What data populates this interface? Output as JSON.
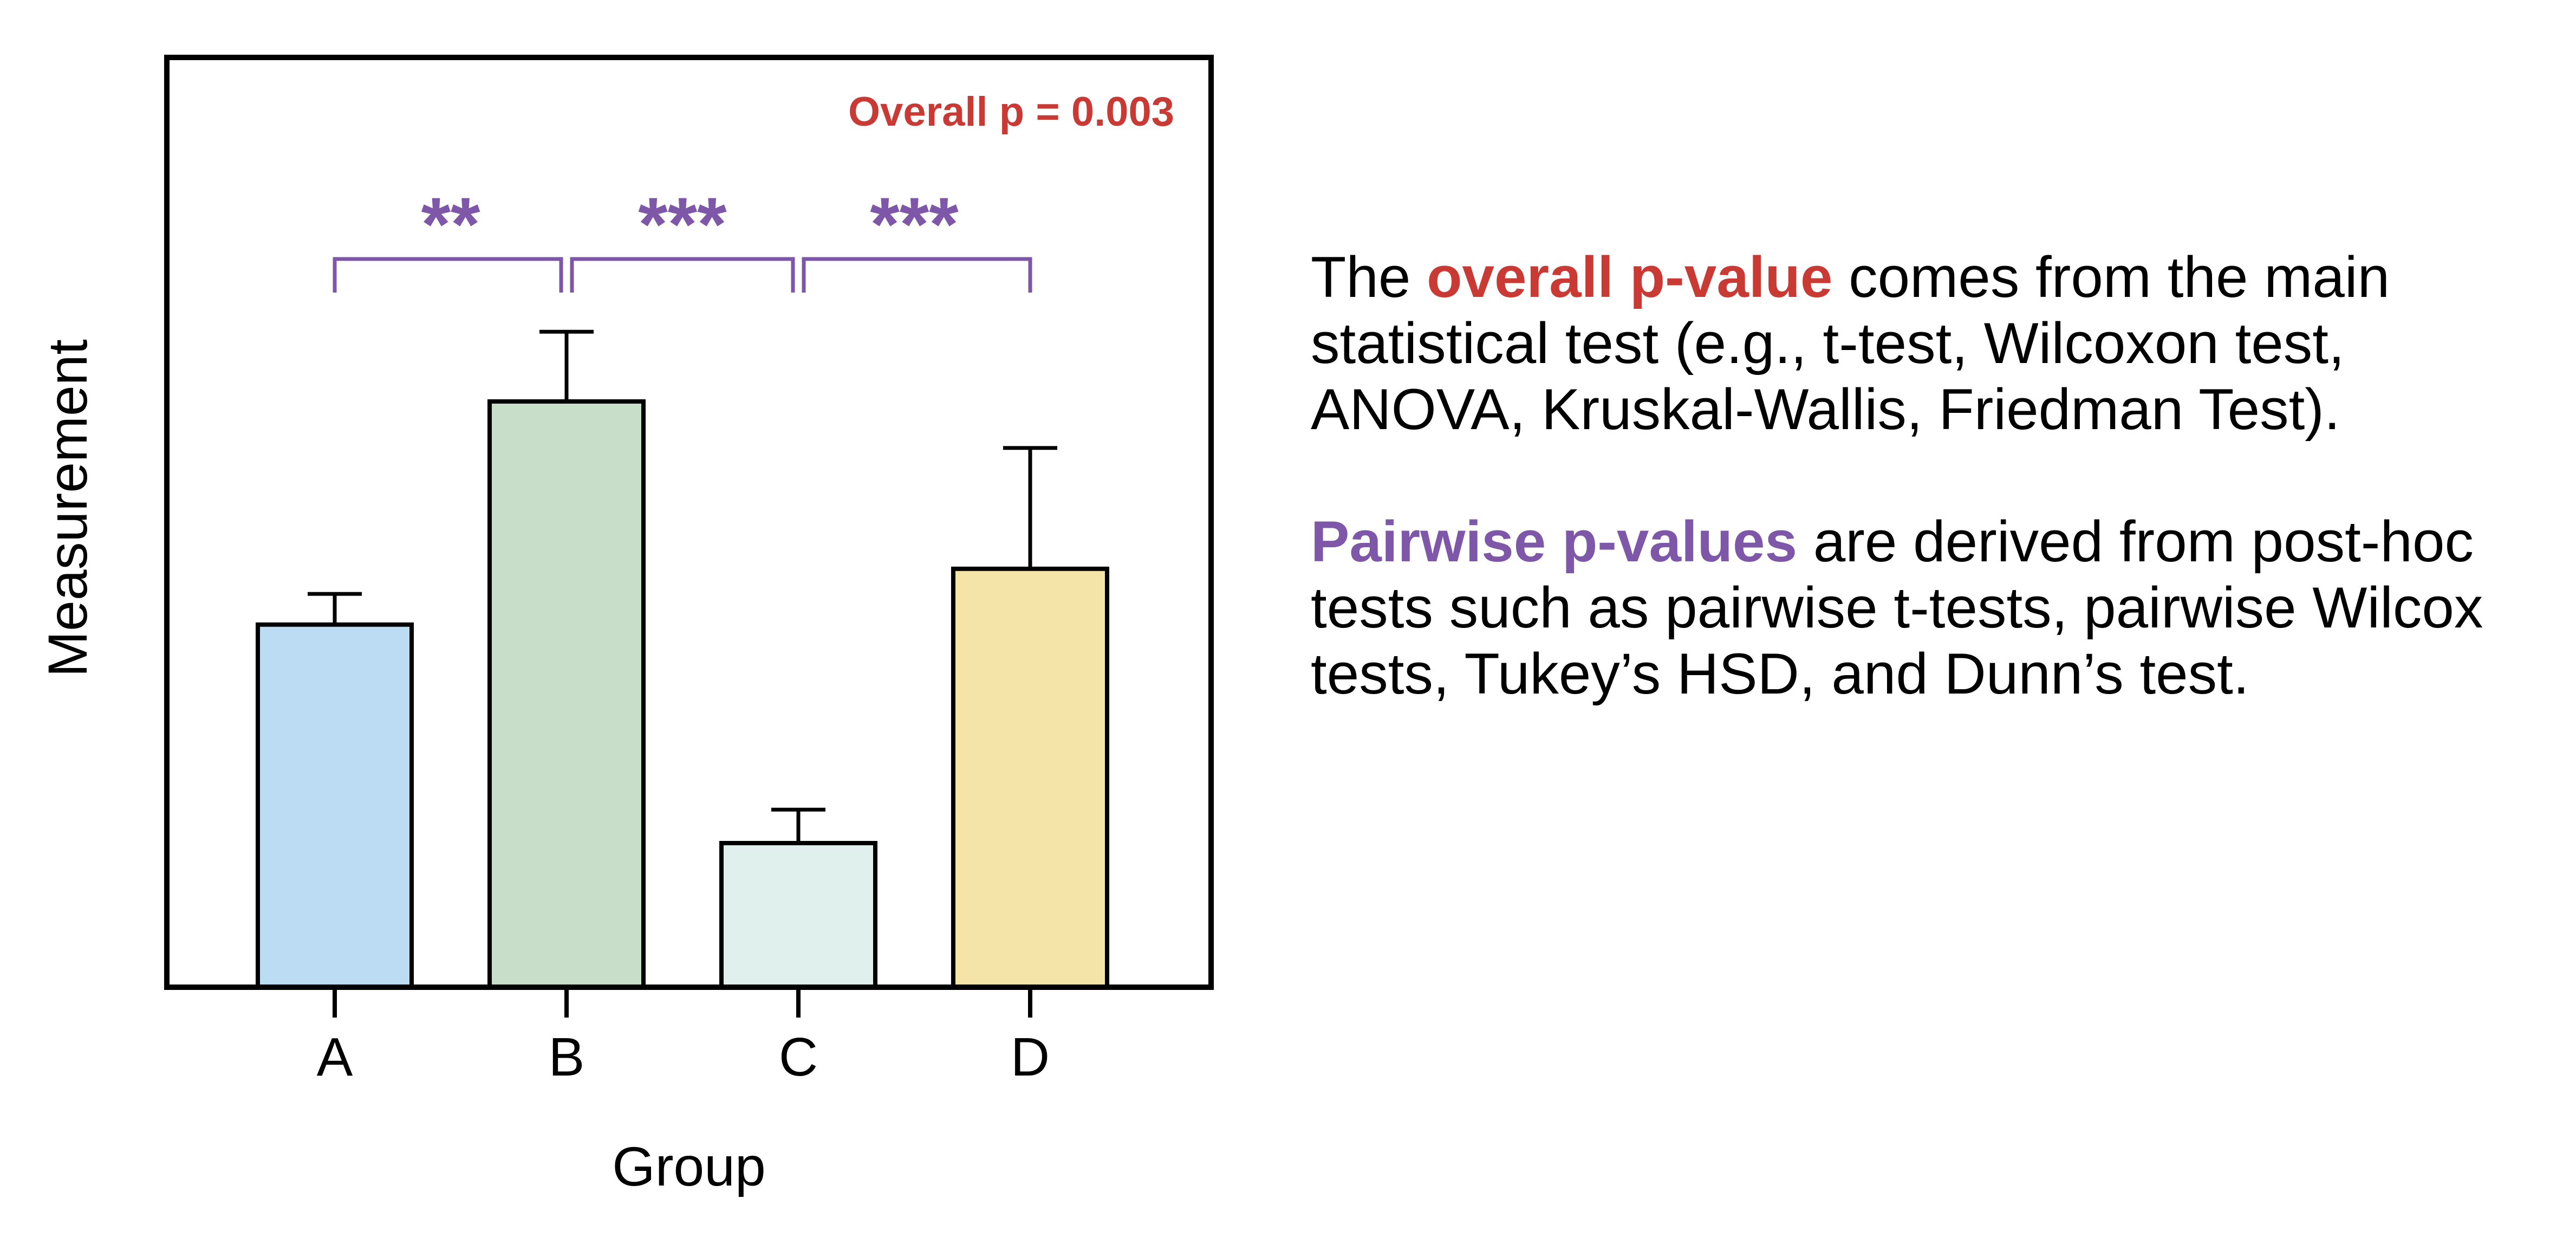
{
  "chart_data": {
    "type": "bar",
    "title": "",
    "xlabel": "Group",
    "ylabel": "Measurement",
    "categories": [
      "A",
      "B",
      "C",
      "D"
    ],
    "values": [
      39,
      63,
      15.5,
      45
    ],
    "errors": [
      3.3,
      7.5,
      3.6,
      13
    ],
    "colors": [
      "#bbdcf3",
      "#c9dec9",
      "#e0f0ec",
      "#f5e4a7"
    ],
    "ylim": [
      0,
      100
    ],
    "y_ticks_shown": false,
    "grid": false,
    "legend": "none",
    "annotations": {
      "overall_p": "Overall p = 0.003",
      "overall_color": "#c93a35",
      "pairwise_color": "#7e57a8",
      "pairwise": [
        {
          "from": "A",
          "to": "B",
          "label": "**"
        },
        {
          "from": "B",
          "to": "C",
          "label": "***"
        },
        {
          "from": "C",
          "to": "D",
          "label": "***"
        }
      ]
    }
  },
  "explanation": {
    "p1_before": "The ",
    "p1_highlight": "overall p-value",
    "p1_after": " comes from the main statistical test (e.g., t-test, Wilcoxon test, ANOVA, Kruskal-Wallis, Friedman Test).",
    "p2_highlight": "Pairwise p-values",
    "p2_after": " are derived from post-hoc tests such as pairwise t-tests, pairwise Wilcox tests, Tukey’s HSD, and Dunn’s test."
  }
}
